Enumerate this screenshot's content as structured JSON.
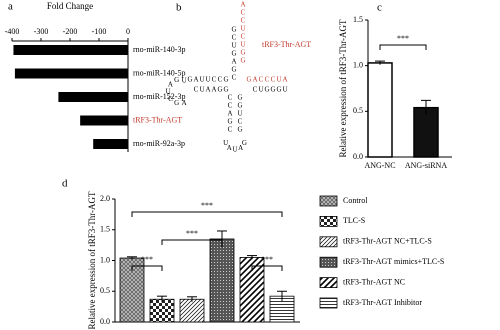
{
  "chart_data": [
    {
      "type": "hbar",
      "label": "a",
      "title": "Fold Change",
      "categories": [
        "rno-miR-140-3p",
        "rno-miR-140-5p",
        "rno-miR-152-3p",
        "tRF3-Thr-AGT",
        "rno-miR-92a-3p"
      ],
      "category_colors": [
        "#000000",
        "#000000",
        "#000000",
        "#c0392b",
        "#000000"
      ],
      "values": [
        -395,
        -390,
        -240,
        -165,
        -120
      ],
      "color": "#000000",
      "xlim": [
        -400,
        0
      ],
      "xticks": [
        -400,
        -300,
        -200,
        -100,
        0
      ]
    },
    {
      "type": "bar",
      "label": "c",
      "ylabel": "Relative expression of tRF3-Thr-AGT",
      "categories": [
        "ANG-NC",
        "ANG-siRNA"
      ],
      "values": [
        1.03,
        0.54
      ],
      "errors": [
        0.02,
        0.08
      ],
      "colors": [
        "#ffffff",
        "#111111"
      ],
      "ylim": [
        0,
        1.5
      ],
      "yticks": [
        {
          "value": 0,
          "label": "0.0"
        },
        {
          "value": 0.5,
          "label": "0.5"
        },
        {
          "value": 1,
          "label": "1.0"
        },
        {
          "value": 1.5,
          "label": "1.5"
        }
      ],
      "annotations": [
        "***"
      ]
    },
    {
      "type": "pattern-bar",
      "label": "d",
      "ylabel": "Relative expression of tRF3-Thr-AGT",
      "series": [
        {
          "name": "Control",
          "pattern": "crosshatch",
          "values": [
            1.04
          ],
          "errors": [
            0.02
          ]
        },
        {
          "name": "TLC-S",
          "pattern": "checker",
          "values": [
            0.37
          ],
          "errors": [
            0.05
          ]
        },
        {
          "name": "tRF3-Thr-AGT NC+TLC-S",
          "pattern": "diagonal",
          "values": [
            0.37
          ],
          "errors": [
            0.04
          ]
        },
        {
          "name": "tRF3-Thr-AGT mimics+TLC-S",
          "pattern": "dots",
          "values": [
            1.35
          ],
          "errors": [
            0.13
          ]
        },
        {
          "name": "tRF3-Thr-AGT NC",
          "pattern": "diagonal-wide",
          "values": [
            1.05
          ],
          "errors": [
            0.03
          ]
        },
        {
          "name": "tRF3-Thr-AGT Inhibitor",
          "pattern": "horizontal",
          "values": [
            0.42
          ],
          "errors": [
            0.08
          ]
        }
      ],
      "ylim": [
        0,
        2
      ],
      "yticks": [
        {
          "value": 0,
          "label": "0.0"
        },
        {
          "value": 0.5,
          "label": "0.5"
        },
        {
          "value": 1,
          "label": "1.0"
        },
        {
          "value": 1.5,
          "label": "1.5"
        },
        {
          "value": 2,
          "label": "2.0"
        }
      ],
      "annotations": [
        "***",
        "***",
        "***",
        "***"
      ]
    }
  ],
  "diagram": {
    "label": "b",
    "name": "tRF3-Thr-AGT",
    "name_color": "#c0392b",
    "strands": [
      {
        "seq": "ACCUCUGG",
        "color": "#c0392b"
      },
      {
        "seq": "GCUGAGC",
        "color": "#000000"
      },
      {
        "seq": "GACCCUA",
        "color": "#c0392b"
      },
      {
        "seq": "CUGGGU",
        "color": "#000000"
      },
      {
        "seq": "GAUUCCG",
        "color": "#000000"
      },
      {
        "seq": "CUAAGG",
        "color": "#000000"
      },
      {
        "seq": "UGAUCGA",
        "color": "#000000"
      },
      {
        "seq": "CCAGC",
        "color": "#000000"
      },
      {
        "seq": "GGUCG",
        "color": "#000000"
      },
      {
        "seq": "UAUAG",
        "color": "#000000"
      }
    ]
  }
}
